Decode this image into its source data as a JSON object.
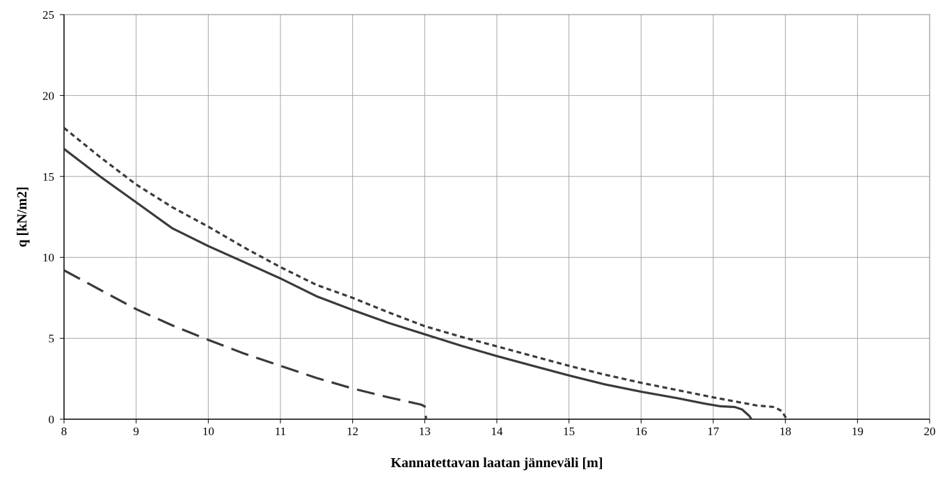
{
  "chart_data": {
    "type": "line",
    "title": "",
    "xlabel": "Kannatettavan laatan jänneväli [m]",
    "ylabel": "q [kN/m2]",
    "xlim": [
      8,
      20
    ],
    "ylim": [
      0,
      25
    ],
    "xticks": [
      8,
      9,
      10,
      11,
      12,
      13,
      14,
      15,
      16,
      17,
      18,
      19,
      20
    ],
    "yticks": [
      0,
      5,
      10,
      15,
      20,
      25
    ],
    "grid": true,
    "legend": "none",
    "series": [
      {
        "style": "short-dash",
        "color": "#3a3a3a",
        "points": [
          [
            8.0,
            18.0
          ],
          [
            8.5,
            16.2
          ],
          [
            9.0,
            14.5
          ],
          [
            9.5,
            13.1
          ],
          [
            10.0,
            11.9
          ],
          [
            10.5,
            10.6
          ],
          [
            11.0,
            9.4
          ],
          [
            11.5,
            8.3
          ],
          [
            12.0,
            7.5
          ],
          [
            12.5,
            6.6
          ],
          [
            13.0,
            5.75
          ],
          [
            13.5,
            5.1
          ],
          [
            14.0,
            4.5
          ],
          [
            14.5,
            3.9
          ],
          [
            15.0,
            3.3
          ],
          [
            15.5,
            2.75
          ],
          [
            16.0,
            2.25
          ],
          [
            16.5,
            1.8
          ],
          [
            17.0,
            1.35
          ],
          [
            17.3,
            1.1
          ],
          [
            17.6,
            0.85
          ],
          [
            17.85,
            0.75
          ],
          [
            17.95,
            0.5
          ],
          [
            18.02,
            0.0
          ]
        ]
      },
      {
        "style": "solid",
        "color": "#3a3a3a",
        "points": [
          [
            8.0,
            16.7
          ],
          [
            8.5,
            15.0
          ],
          [
            9.0,
            13.4
          ],
          [
            9.5,
            11.8
          ],
          [
            10.0,
            10.7
          ],
          [
            10.5,
            9.7
          ],
          [
            11.0,
            8.7
          ],
          [
            11.5,
            7.6
          ],
          [
            12.0,
            6.75
          ],
          [
            12.5,
            5.95
          ],
          [
            13.0,
            5.25
          ],
          [
            13.5,
            4.55
          ],
          [
            14.0,
            3.9
          ],
          [
            14.5,
            3.3
          ],
          [
            15.0,
            2.7
          ],
          [
            15.5,
            2.15
          ],
          [
            16.0,
            1.7
          ],
          [
            16.5,
            1.3
          ],
          [
            16.9,
            0.95
          ],
          [
            17.1,
            0.8
          ],
          [
            17.3,
            0.75
          ],
          [
            17.4,
            0.6
          ],
          [
            17.5,
            0.2
          ],
          [
            17.53,
            0.0
          ]
        ]
      },
      {
        "style": "long-dash",
        "color": "#3a3a3a",
        "points": [
          [
            8.0,
            9.2
          ],
          [
            8.5,
            8.0
          ],
          [
            9.0,
            6.8
          ],
          [
            9.5,
            5.8
          ],
          [
            10.0,
            4.9
          ],
          [
            10.5,
            4.05
          ],
          [
            11.0,
            3.3
          ],
          [
            11.5,
            2.55
          ],
          [
            12.0,
            1.9
          ],
          [
            12.5,
            1.35
          ],
          [
            12.95,
            0.9
          ],
          [
            13.0,
            0.8
          ],
          [
            13.02,
            0.0
          ]
        ]
      }
    ]
  }
}
